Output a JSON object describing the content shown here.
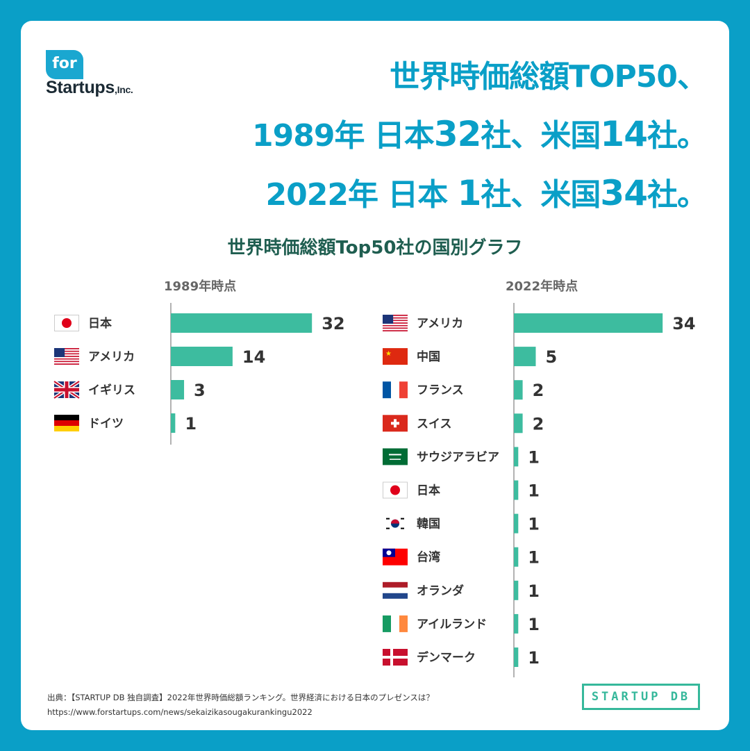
{
  "logo": {
    "badge": "for",
    "name": "Startups",
    "suffix": ",Inc."
  },
  "headline": {
    "line1": "世界時価総額TOP50、",
    "line2_prefix": "1989年 日本",
    "line2_num1": "32",
    "line2_mid": "社、米国",
    "line2_num2": "14",
    "line2_suffix": "社。",
    "line3_prefix": "2022年 日本 ",
    "line3_num1": "1",
    "line3_mid": "社、米国",
    "line3_num2": "34",
    "line3_suffix": "社。"
  },
  "chart_title": "世界時価総額Top50社の国別グラフ",
  "colors": {
    "bar": "#3dbc9f",
    "accent": "#0a9fc7",
    "title": "#1f5e50"
  },
  "chart_data": [
    {
      "type": "bar",
      "title": "1989年時点",
      "categories": [
        "日本",
        "アメリカ",
        "イギリス",
        "ドイツ"
      ],
      "flags": [
        "japan-flag-icon",
        "usa-flag-icon",
        "uk-flag-icon",
        "germany-flag-icon"
      ],
      "values": [
        32,
        14,
        3,
        1
      ],
      "orientation": "horizontal"
    },
    {
      "type": "bar",
      "title": "2022年時点",
      "categories": [
        "アメリカ",
        "中国",
        "フランス",
        "スイス",
        "サウジアラビア",
        "日本",
        "韓国",
        "台湾",
        "オランダ",
        "アイルランド",
        "デンマーク"
      ],
      "flags": [
        "usa-flag-icon",
        "china-flag-icon",
        "france-flag-icon",
        "switzerland-flag-icon",
        "saudi-arabia-flag-icon",
        "japan-flag-icon",
        "korea-flag-icon",
        "taiwan-flag-icon",
        "netherlands-flag-icon",
        "ireland-flag-icon",
        "denmark-flag-icon"
      ],
      "values": [
        34,
        5,
        2,
        2,
        1,
        1,
        1,
        1,
        1,
        1,
        1
      ],
      "orientation": "horizontal"
    }
  ],
  "source": {
    "line1": "出典：【STARTUP DB 独自調査】2022年世界時価総額ランキング。世界経済における日本のプレゼンスは？",
    "line2": "https://www.forstartups.com/news/sekaizikasougakurankingu2022"
  },
  "db_logo": "STARTUP DB"
}
